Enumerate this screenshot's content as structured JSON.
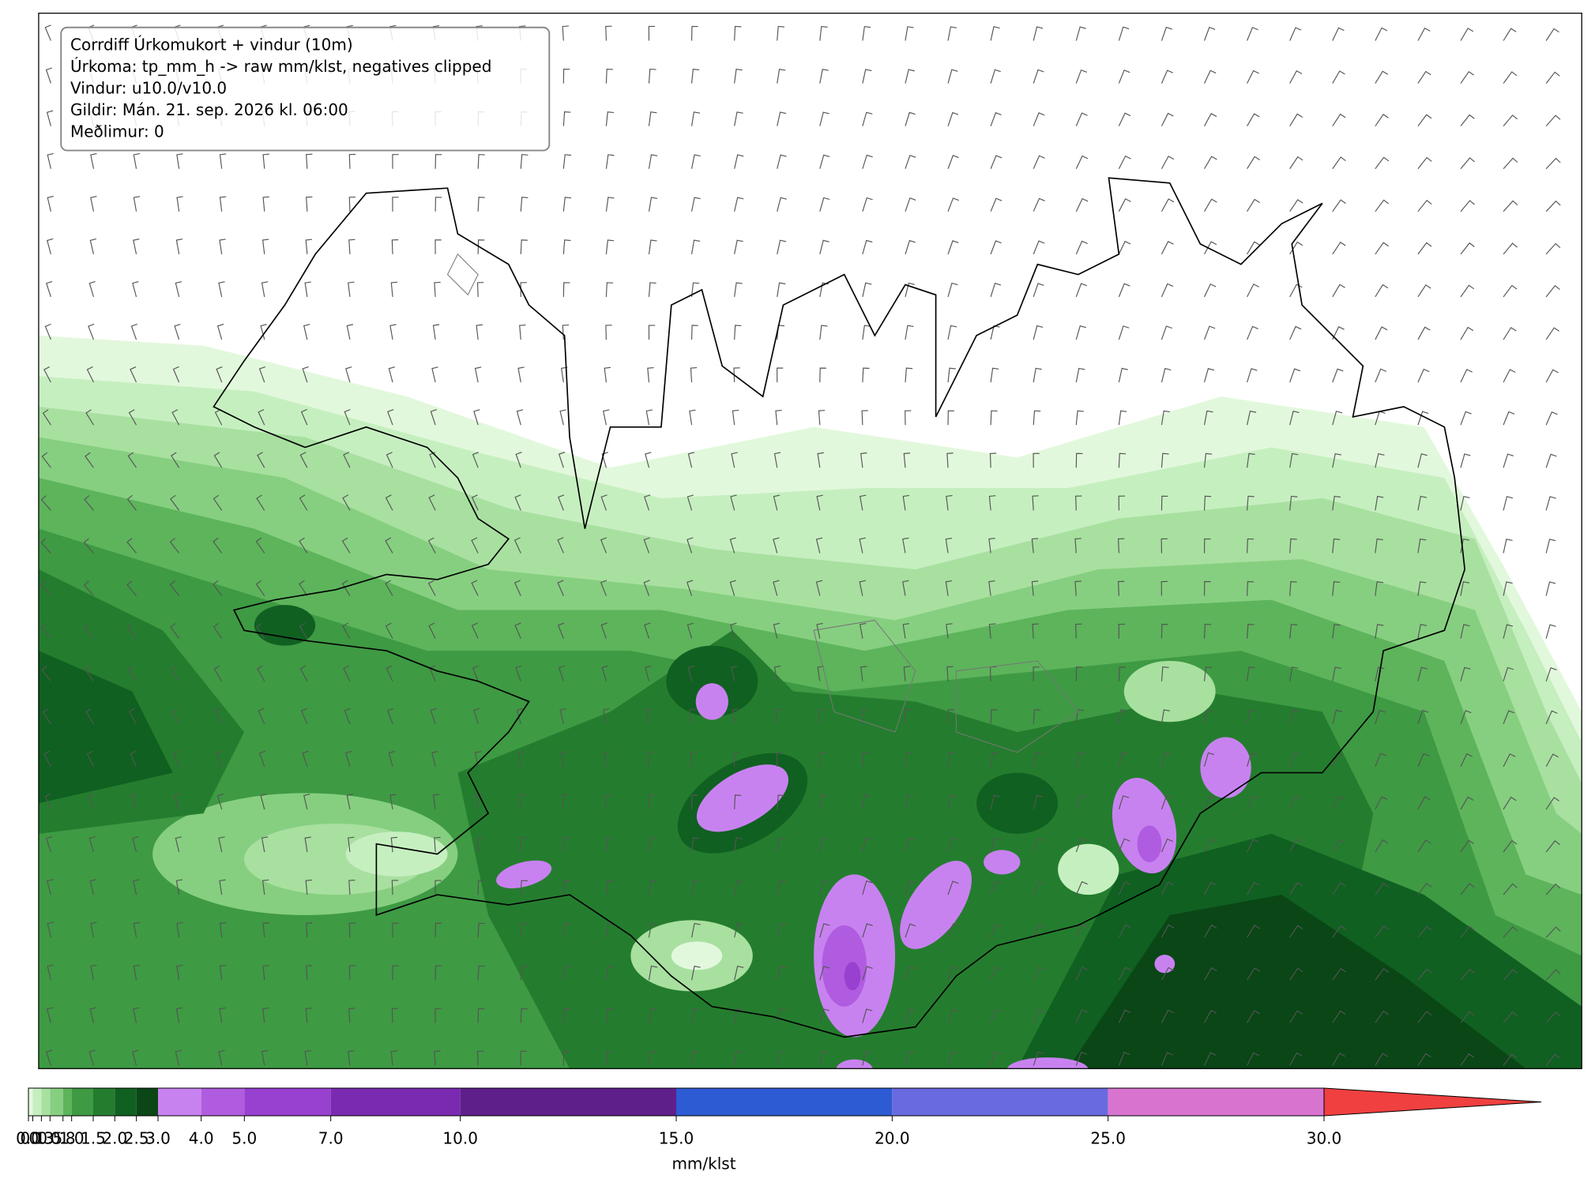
{
  "chart_data": {
    "type": "colorbar-map",
    "annotation_lines": [
      "Corrdiff Úrkomukort + vindur (10m)",
      "Úrkoma: tp_mm_h -> raw mm/klst, negatives clipped",
      "Vindur: u10.0/v10.0",
      "Gildir: Mán. 21. sep. 2026 kl. 06:00",
      "Meðlimur: 0"
    ],
    "xlim": [
      0,
      30
    ],
    "xticks": [
      {
        "value": 0,
        "label": "0.0"
      },
      {
        "value": 0.1,
        "label": "0.1"
      },
      {
        "value": 0.3,
        "label": "0.3"
      },
      {
        "value": 0.5,
        "label": "0.5"
      },
      {
        "value": 0.8,
        "label": "0.8"
      },
      {
        "value": 1,
        "label": "1.0"
      },
      {
        "value": 1.5,
        "label": "1.5"
      },
      {
        "value": 2,
        "label": "2.0"
      },
      {
        "value": 2.5,
        "label": "2.5"
      },
      {
        "value": 3,
        "label": "3.0"
      },
      {
        "value": 4,
        "label": "4.0"
      },
      {
        "value": 5,
        "label": "5.0"
      },
      {
        "value": 7,
        "label": "7.0"
      },
      {
        "value": 10,
        "label": "10.0"
      },
      {
        "value": 15,
        "label": "15.0"
      },
      {
        "value": 20,
        "label": "20.0"
      },
      {
        "value": 25,
        "label": "25.0"
      },
      {
        "value": 30,
        "label": "30.0"
      }
    ],
    "colors": [
      "#e2f8dc",
      "#c6efc0",
      "#a8e0a0",
      "#86cf80",
      "#5db45b",
      "#3e9a43",
      "#247d2e",
      "#106021",
      "#0a4616",
      "#c882f0",
      "#b05ce0",
      "#9840d0",
      "#7a2ab0",
      "#5e1f8a",
      "#2d5bd4",
      "#6a6ae0",
      "#d874d0"
    ],
    "extend_color": "#f04040",
    "xlabel": "mm/klst"
  }
}
